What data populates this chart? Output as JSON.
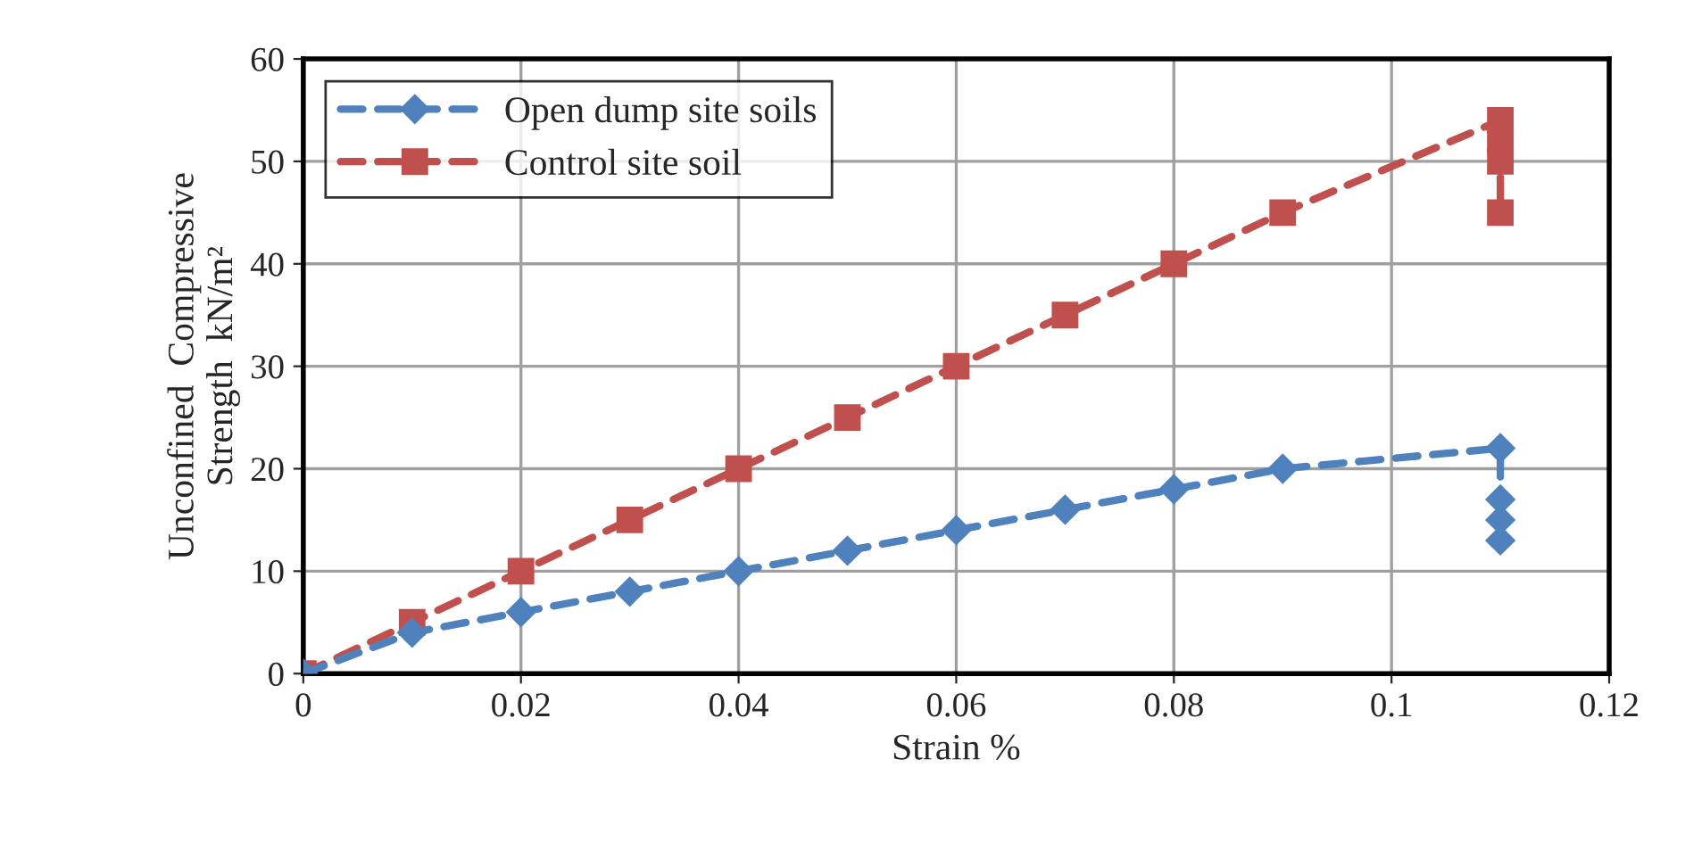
{
  "chart_data": {
    "type": "line",
    "xlabel": "Strain %",
    "ylabel": "Unconfined  Compressive\nStrength  kN/m²",
    "x": [
      0,
      0.01,
      0.02,
      0.03,
      0.04,
      0.05,
      0.06,
      0.07,
      0.08,
      0.09,
      0.11,
      0.11,
      0.11,
      0.11
    ],
    "series": [
      {
        "name": "Open dump site soils",
        "color": "#4f81bd",
        "marker": "diamond",
        "values": [
          0,
          4,
          6,
          8,
          10,
          12,
          14,
          16,
          18,
          20,
          22,
          17,
          15,
          13
        ]
      },
      {
        "name": "Control site soil",
        "color": "#c0504d",
        "marker": "square",
        "values": [
          0,
          5,
          10,
          15,
          20,
          25,
          30,
          35,
          40,
          45,
          54,
          52,
          50,
          45
        ]
      }
    ],
    "xlim": [
      0,
      0.12
    ],
    "xticks": [
      {
        "value": 0,
        "label": "0"
      },
      0.02,
      0.04,
      0.06,
      0.08,
      {
        "value": 0.1,
        "label": "0.1"
      },
      0.12
    ],
    "ylim": [
      0,
      60
    ],
    "yticks": [
      0,
      10,
      20,
      30,
      40,
      50,
      60
    ],
    "grid": true,
    "legend": "top left",
    "line_style": "dashed"
  }
}
